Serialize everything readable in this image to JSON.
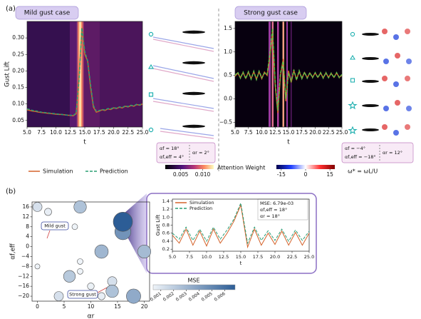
{
  "panels": [
    "(a)",
    "(b)"
  ],
  "chart_data": [
    {
      "type": "line",
      "title": "Mild gust case",
      "xlabel": "t",
      "ylabel": "Gust Lift",
      "x": [
        5,
        5.5,
        6,
        6.5,
        7,
        7.5,
        8,
        8.5,
        9,
        9.5,
        10,
        10.5,
        11,
        11.5,
        12,
        12.5,
        13,
        13.5,
        14,
        14.5,
        15,
        15.5,
        16,
        16.5,
        17,
        17.5,
        18,
        18.5,
        19,
        19.5,
        20,
        20.5,
        21,
        21.5,
        22,
        22.5,
        23,
        23.5,
        24,
        24.5,
        25
      ],
      "series": [
        {
          "name": "Simulation",
          "color": "#d4622a",
          "style": "solid",
          "values": [
            0.082,
            0.08,
            0.078,
            0.077,
            0.075,
            0.074,
            0.073,
            0.072,
            0.071,
            0.07,
            0.069,
            0.068,
            0.068,
            0.067,
            0.066,
            0.065,
            0.064,
            0.07,
            0.18,
            0.33,
            0.25,
            0.23,
            0.15,
            0.09,
            0.075,
            0.078,
            0.082,
            0.08,
            0.085,
            0.083,
            0.088,
            0.086,
            0.09,
            0.088,
            0.093,
            0.091,
            0.095,
            0.093,
            0.098,
            0.096,
            0.1
          ]
        },
        {
          "name": "Prediction",
          "color": "#2a9d74",
          "style": "dashed",
          "values": [
            0.085,
            0.083,
            0.08,
            0.079,
            0.077,
            0.075,
            0.074,
            0.073,
            0.072,
            0.071,
            0.07,
            0.069,
            0.068,
            0.067,
            0.066,
            0.066,
            0.065,
            0.072,
            0.17,
            0.33,
            0.26,
            0.23,
            0.16,
            0.095,
            0.078,
            0.08,
            0.083,
            0.082,
            0.086,
            0.085,
            0.089,
            0.087,
            0.091,
            0.089,
            0.094,
            0.092,
            0.096,
            0.094,
            0.099,
            0.097,
            0.101
          ]
        }
      ],
      "xlim": [
        5,
        25
      ],
      "ylim": [
        0.03,
        0.35
      ],
      "xticks": [
        {
          "value": 5,
          "label": "5.0"
        },
        {
          "value": 7.5,
          "label": "7.5"
        },
        {
          "value": 10,
          "label": "10.0"
        },
        {
          "value": 12.5,
          "label": "12.5"
        },
        {
          "value": 15,
          "label": "15.0"
        },
        {
          "value": 17.5,
          "label": "17.5"
        },
        {
          "value": 20,
          "label": "20.0"
        },
        {
          "value": 22.5,
          "label": "22.5"
        },
        {
          "value": 25,
          "label": "25.0"
        }
      ],
      "yticks": [
        0.05,
        {
          "value": 0.1,
          "label": "0.10"
        },
        0.15,
        {
          "value": 0.2,
          "label": "0.20"
        },
        0.25,
        {
          "value": 0.3,
          "label": "0.30"
        }
      ],
      "annotation": [
        "αf = 18°",
        "αf,eff = 4°",
        "αr = 2°"
      ],
      "colorbar": {
        "label": "Attention Weight",
        "clim": [
          0.0015,
          0.0125
        ],
        "ticks": [
          0.005,
          {
            "value": 0.01,
            "label": "0.010"
          }
        ]
      }
    },
    {
      "type": "line",
      "title": "Strong gust case",
      "xlabel": "t",
      "x": [
        5,
        5.5,
        6,
        6.5,
        7,
        7.5,
        8,
        8.5,
        9,
        9.5,
        10,
        10.5,
        11,
        11.5,
        12,
        12.5,
        13,
        13.5,
        14,
        14.5,
        15,
        15.5,
        16,
        16.5,
        17,
        17.5,
        18,
        18.5,
        19,
        19.5,
        20,
        20.5,
        21,
        21.5,
        22,
        22.5,
        23,
        23.5,
        24,
        24.5,
        25
      ],
      "series": [
        {
          "color": "#d4622a",
          "style": "solid",
          "values": [
            0.48,
            0.55,
            0.45,
            0.56,
            0.44,
            0.57,
            0.43,
            0.58,
            0.42,
            0.58,
            0.43,
            0.57,
            0.5,
            0.9,
            1.45,
            0.3,
            -0.3,
            0.5,
            0.85,
            -0.05,
            0.6,
            0.35,
            0.6,
            0.42,
            0.58,
            0.44,
            0.56,
            0.45,
            0.55,
            0.46,
            0.55,
            0.46,
            0.55,
            0.45,
            0.55,
            0.46,
            0.54,
            0.46,
            0.55,
            0.46,
            0.5
          ]
        },
        {
          "color": "#5fbf4a",
          "style": "dashed",
          "values": [
            0.5,
            0.57,
            0.44,
            0.57,
            0.43,
            0.58,
            0.42,
            0.59,
            0.41,
            0.59,
            0.45,
            0.55,
            0.52,
            0.95,
            1.5,
            0.35,
            -0.25,
            0.55,
            0.8,
            0.0,
            0.55,
            0.38,
            0.62,
            0.4,
            0.6,
            0.43,
            0.57,
            0.44,
            0.56,
            0.45,
            0.56,
            0.45,
            0.56,
            0.44,
            0.56,
            0.45,
            0.55,
            0.45,
            0.56,
            0.45,
            0.52
          ]
        }
      ],
      "xlim": [
        5,
        25
      ],
      "ylim": [
        -0.6,
        1.65
      ],
      "xticks": [
        {
          "value": 5,
          "label": "5.0"
        },
        {
          "value": 7.5,
          "label": "7.5"
        },
        {
          "value": 10,
          "label": "10.0"
        },
        {
          "value": 12.5,
          "label": "12.5"
        },
        {
          "value": 15,
          "label": "15.0"
        },
        {
          "value": 17.5,
          "label": "17.5"
        },
        {
          "value": 20,
          "label": "20.0"
        },
        {
          "value": 22.5,
          "label": "22.5"
        },
        {
          "value": 25,
          "label": "25.0"
        }
      ],
      "yticks": [
        {
          "value": -0.5,
          "label": "−0.5"
        },
        {
          "value": 0,
          "label": "0.0"
        },
        0.5,
        {
          "value": 1,
          "label": "1.0"
        },
        1.5
      ],
      "annotation": [
        "αf = −4°",
        "αf,eff = −18°",
        "αr = 12°"
      ],
      "colorbar": {
        "label": "ω* = ωL/U",
        "clim": [
          -18,
          18
        ],
        "ticks": [
          {
            "value": -15,
            "label": "-15"
          },
          0,
          15
        ]
      }
    },
    {
      "type": "scatter",
      "xlabel": "αr",
      "ylabel": "αf,eff",
      "x": [
        0,
        2,
        8,
        0,
        6,
        8,
        8,
        10,
        12,
        14,
        14,
        16,
        16,
        12,
        20,
        18,
        4,
        7
      ],
      "values": [
        16,
        14,
        16,
        -8,
        -12,
        -6,
        -10,
        -16,
        -20,
        -14,
        -18,
        6,
        10,
        -2,
        -2,
        -20,
        -20,
        8
      ],
      "sizes": [
        0.0012,
        0.0006,
        0.0025,
        0.0002,
        0.0022,
        0.0003,
        0.0003,
        0.0005,
        0.0006,
        0.0012,
        0.0025,
        0.0045,
        0.0068,
        0.003,
        0.0028,
        0.0035,
        0.0012,
        0.0003
      ],
      "xlim": [
        -1,
        21
      ],
      "ylim": [
        -22,
        18
      ],
      "xticks": [
        0,
        5,
        10,
        15,
        20
      ],
      "yticks": [
        {
          "value": -20,
          "label": "−20"
        },
        {
          "value": -16,
          "label": "−16"
        },
        {
          "value": -12,
          "label": "−12"
        },
        {
          "value": -8,
          "label": "−8"
        },
        {
          "value": -4,
          "label": "−4"
        },
        0,
        4,
        8,
        12,
        16
      ],
      "annotations": [
        "Mild gust",
        "Strong gust"
      ],
      "colorbar": {
        "label": "MSE",
        "clim": [
          0.0004,
          0.0068
        ],
        "ticks": [
          0.001,
          0.002,
          0.003,
          0.004,
          0.005,
          0.006
        ]
      }
    },
    {
      "type": "line",
      "xlabel": "t",
      "ylabel": "Gust Lift",
      "x": [
        5,
        6,
        7,
        8,
        9,
        10,
        11,
        12,
        13,
        14,
        15,
        16,
        17,
        18,
        19,
        20,
        21,
        22,
        23,
        24,
        25
      ],
      "series": [
        {
          "name": "Simulation",
          "color": "#d4622a",
          "style": "solid",
          "values": [
            0.55,
            0.35,
            0.7,
            0.3,
            0.65,
            0.28,
            0.7,
            0.35,
            0.6,
            0.9,
            1.3,
            0.25,
            0.7,
            0.3,
            0.6,
            0.32,
            0.65,
            0.3,
            0.62,
            0.3,
            0.6
          ]
        },
        {
          "name": "Prediction",
          "color": "#2a9d74",
          "style": "dashed",
          "values": [
            0.6,
            0.45,
            0.75,
            0.42,
            0.7,
            0.4,
            0.75,
            0.45,
            0.68,
            0.95,
            1.35,
            0.35,
            0.75,
            0.42,
            0.66,
            0.42,
            0.7,
            0.4,
            0.68,
            0.42,
            0.65
          ]
        }
      ],
      "xlim": [
        5,
        25
      ],
      "ylim": [
        0.15,
        1.45
      ],
      "xticks": [
        {
          "value": 5,
          "label": "5.0"
        },
        {
          "value": 7.5,
          "label": "7.5"
        },
        {
          "value": 10,
          "label": "10.0"
        },
        {
          "value": 12.5,
          "label": "12.5"
        },
        {
          "value": 15,
          "label": "15.0"
        },
        {
          "value": 17.5,
          "label": "17.5"
        },
        {
          "value": 20,
          "label": "20.0"
        },
        {
          "value": 22.5,
          "label": "22.5"
        },
        {
          "value": 25,
          "label": "25.0"
        }
      ],
      "yticks": [
        0.2,
        0.4,
        0.6,
        0.8,
        {
          "value": 1,
          "label": "1.0"
        },
        1.2,
        1.4
      ],
      "annotation": [
        "MSE: 6.79e-03",
        "αf,eff = 18°",
        "αr = 18°"
      ]
    }
  ]
}
